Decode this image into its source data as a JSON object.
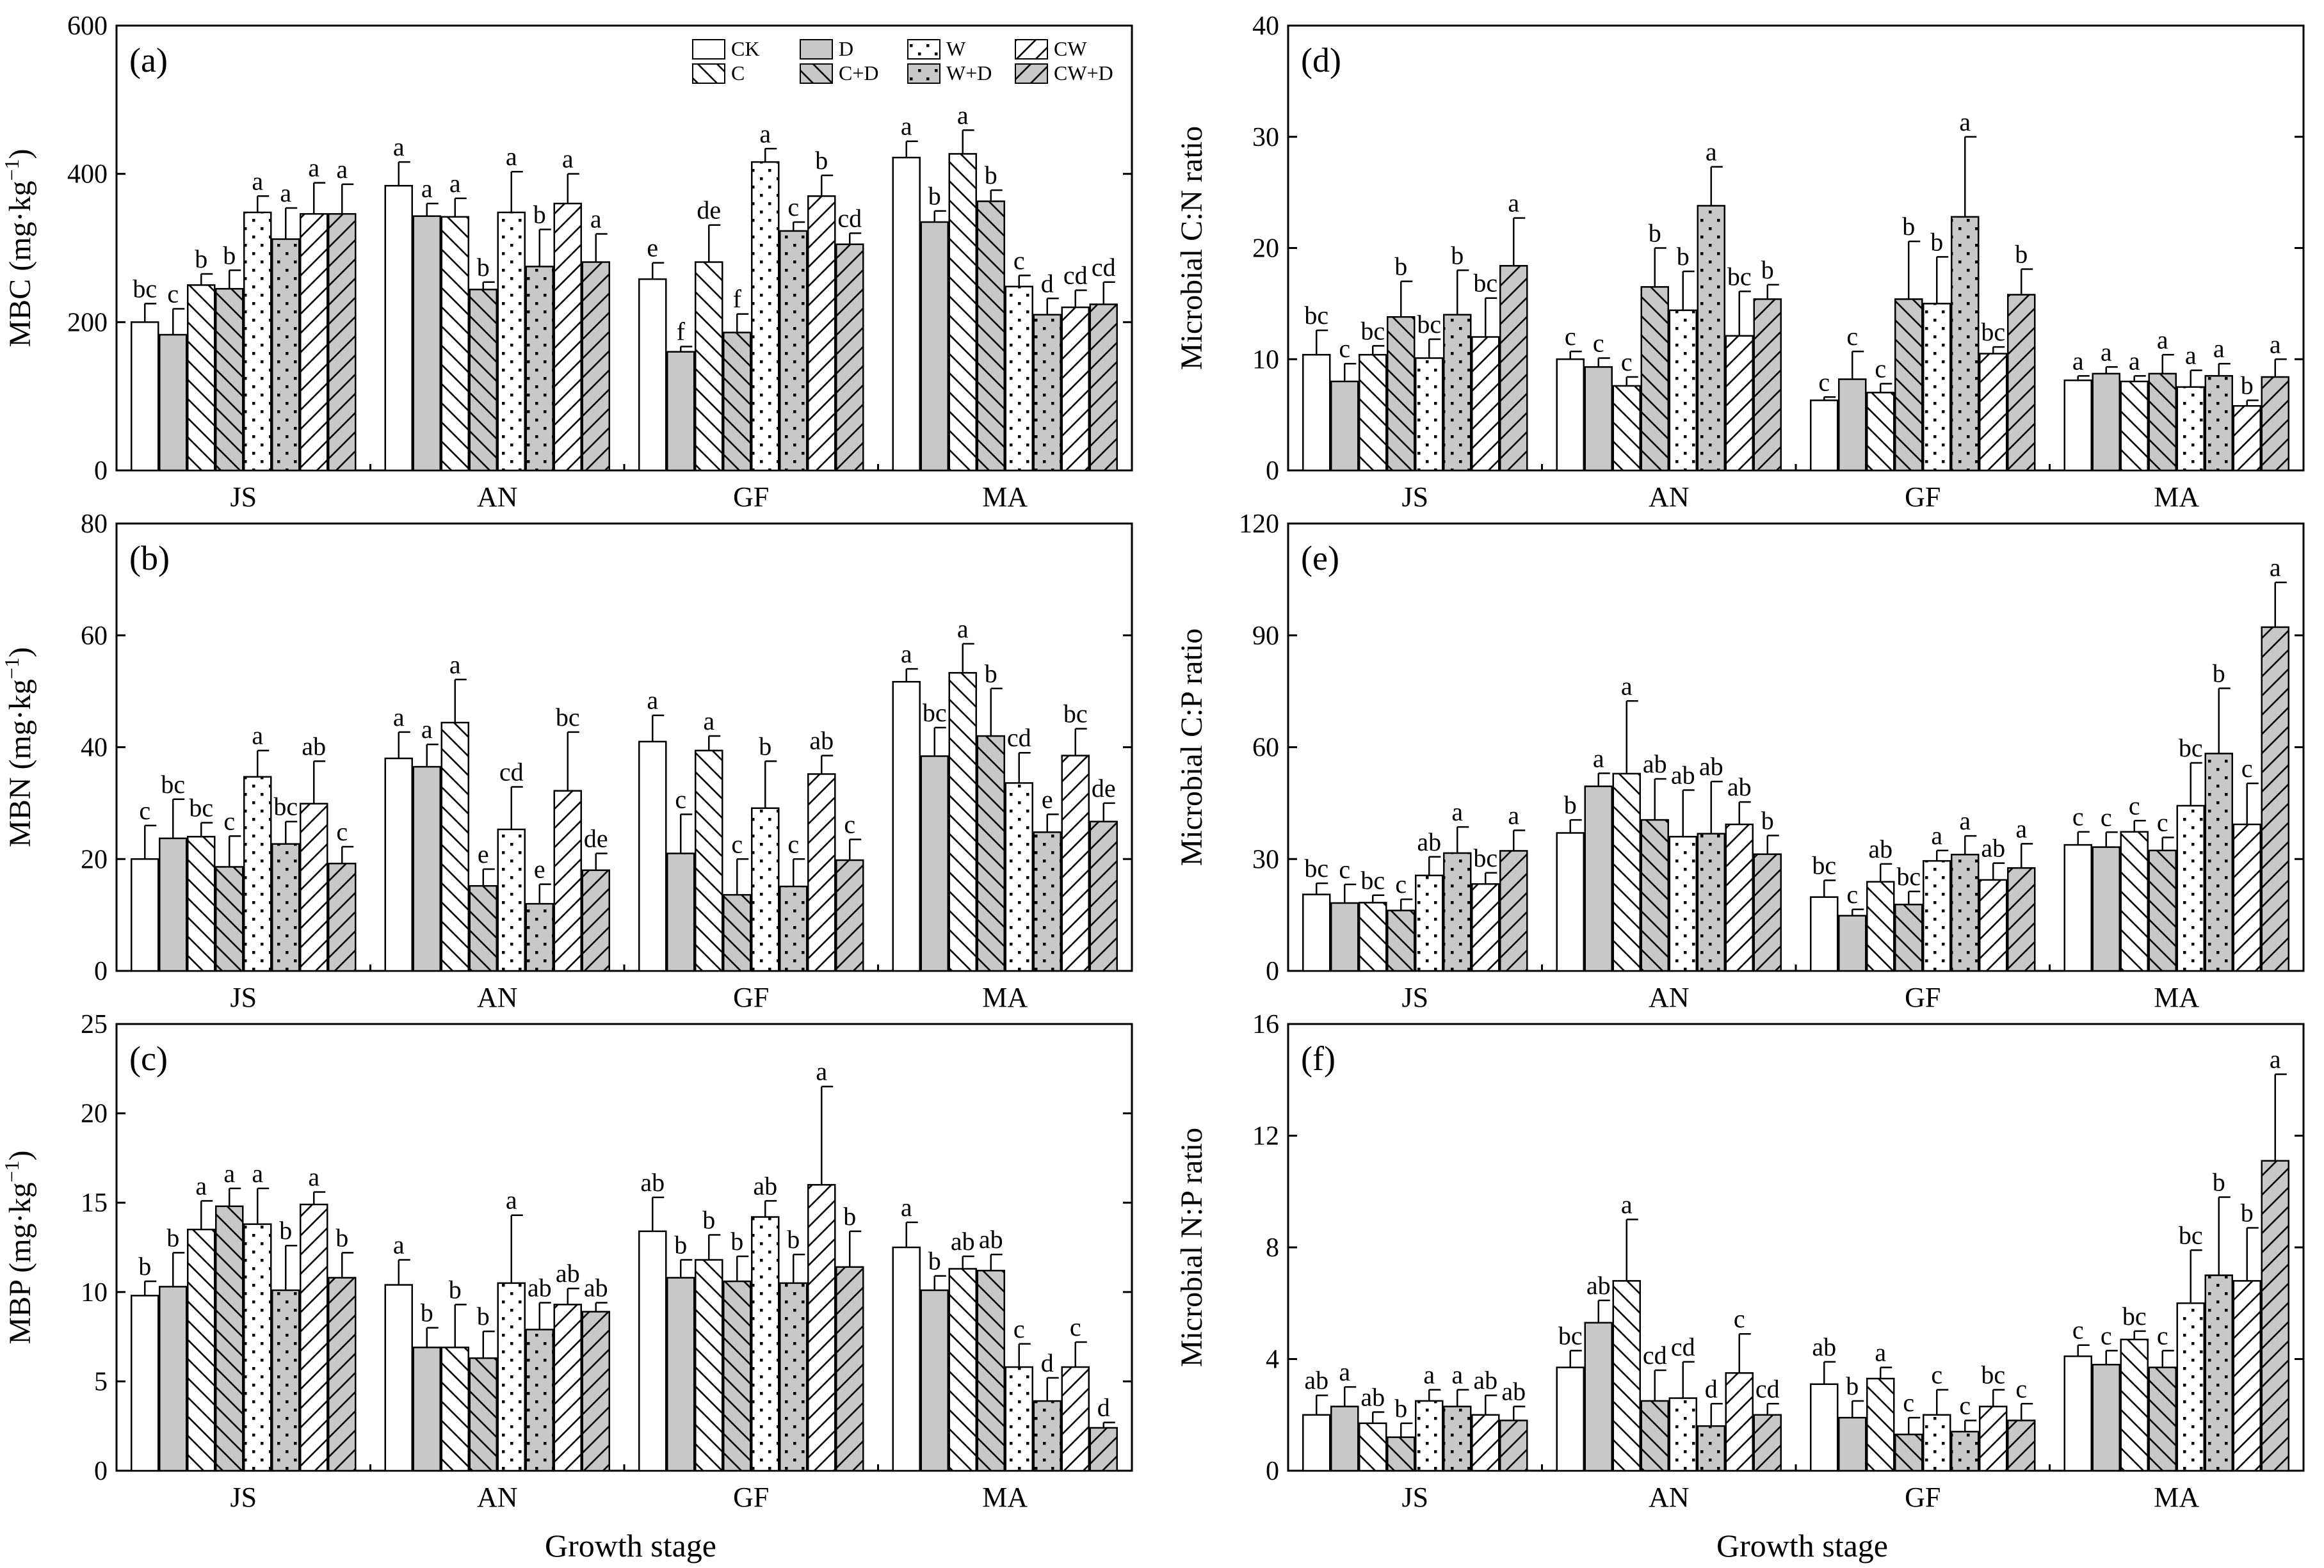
{
  "treatments": [
    "CK",
    "D",
    "W",
    "CW",
    "C",
    "C+D",
    "W+D",
    "CW+D"
  ],
  "bar_order": [
    "CK",
    "D",
    "C",
    "C+D",
    "W",
    "W+D",
    "CW",
    "CW+D"
  ],
  "styles": {
    "CK": {
      "fill": "#ffffff",
      "pattern": "none"
    },
    "D": {
      "fill": "#c8c8c8",
      "pattern": "none"
    },
    "C": {
      "fill": "#ffffff",
      "pattern": "backslash"
    },
    "C+D": {
      "fill": "#c8c8c8",
      "pattern": "backslash"
    },
    "W": {
      "fill": "#ffffff",
      "pattern": "dots"
    },
    "W+D": {
      "fill": "#c8c8c8",
      "pattern": "dots"
    },
    "CW": {
      "fill": "#ffffff",
      "pattern": "slash"
    },
    "CW+D": {
      "fill": "#c8c8c8",
      "pattern": "slash"
    }
  },
  "stages": [
    "JS",
    "AN",
    "GF",
    "MA"
  ],
  "xlabel": "Growth stage",
  "chart_data": [
    {
      "type": "bar",
      "label": "(a)",
      "ylabel": "MBC (mg·kg",
      "ylabel_sup": "−1",
      "ylabel_close": ")",
      "ylim": [
        0,
        600
      ],
      "yticks": [
        0,
        200,
        400,
        600
      ],
      "legend": true,
      "categories": [
        "JS",
        "AN",
        "GF",
        "MA"
      ],
      "values": [
        [
          200,
          183,
          250,
          245,
          348,
          312,
          346,
          346
        ],
        [
          384,
          343,
          342,
          244,
          348,
          275,
          360,
          281
        ],
        [
          258,
          160,
          281,
          186,
          416,
          323,
          370,
          305
        ],
        [
          422,
          335,
          427,
          363,
          248,
          210,
          220,
          224
        ]
      ],
      "errors": [
        [
          25,
          35,
          15,
          25,
          22,
          42,
          42,
          40
        ],
        [
          32,
          17,
          25,
          10,
          55,
          50,
          40,
          38
        ],
        [
          22,
          7,
          50,
          25,
          18,
          12,
          28,
          15
        ],
        [
          22,
          15,
          32,
          15,
          15,
          22,
          23,
          30
        ]
      ],
      "letters": [
        [
          "bc",
          "c",
          "b",
          "b",
          "a",
          "a",
          "a",
          "a"
        ],
        [
          "a",
          "a",
          "a",
          "b",
          "a",
          "b",
          "a",
          "a"
        ],
        [
          "e",
          "f",
          "de",
          "f",
          "a",
          "c",
          "b",
          "cd"
        ],
        [
          "a",
          "b",
          "a",
          "b",
          "c",
          "d",
          "cd",
          "cd"
        ]
      ]
    },
    {
      "type": "bar",
      "label": "(b)",
      "ylabel": "MBN (mg·kg",
      "ylabel_sup": "−1",
      "ylabel_close": ")",
      "ylim": [
        0,
        80
      ],
      "yticks": [
        0,
        20,
        40,
        60,
        80
      ],
      "legend": false,
      "categories": [
        "JS",
        "AN",
        "GF",
        "MA"
      ],
      "values": [
        [
          20,
          23.7,
          24,
          18.6,
          34.7,
          22.7,
          29.9,
          19.2
        ],
        [
          38,
          36.5,
          44.4,
          15.2,
          25.3,
          12,
          32.2,
          18
        ],
        [
          41,
          21,
          39.4,
          13.6,
          29.1,
          15.1,
          35.2,
          19.8
        ],
        [
          51.7,
          38.4,
          53.3,
          42,
          33.6,
          24.8,
          38.5,
          26.7
        ]
      ],
      "errors": [
        [
          6,
          7,
          2.5,
          5.5,
          4.7,
          4,
          7.6,
          3
        ],
        [
          4.7,
          4,
          7.7,
          3,
          7.6,
          3.5,
          10.5,
          3
        ],
        [
          4.7,
          7,
          2.6,
          6.4,
          8.4,
          4.9,
          3.3,
          3.7
        ],
        [
          2.3,
          5.1,
          5.2,
          8.5,
          5.4,
          3.2,
          4.8,
          3.3
        ]
      ],
      "letters": [
        [
          "c",
          "bc",
          "bc",
          "c",
          "a",
          "bc",
          "ab",
          "c"
        ],
        [
          "a",
          "a",
          "a",
          "e",
          "cd",
          "e",
          "bc",
          "de"
        ],
        [
          "a",
          "c",
          "a",
          "c",
          "b",
          "c",
          "ab",
          "c"
        ],
        [
          "a",
          "bc",
          "a",
          "b",
          "cd",
          "e",
          "bc",
          "de"
        ]
      ]
    },
    {
      "type": "bar",
      "label": "(c)",
      "ylabel": "MBP (mg·kg",
      "ylabel_sup": "−1",
      "ylabel_close": ")",
      "ylim": [
        0,
        25
      ],
      "yticks": [
        0,
        5,
        10,
        15,
        20,
        25
      ],
      "legend": false,
      "categories": [
        "JS",
        "AN",
        "GF",
        "MA"
      ],
      "values": [
        [
          9.8,
          10.3,
          13.5,
          14.8,
          13.8,
          10.1,
          14.9,
          10.8
        ],
        [
          10.4,
          6.9,
          6.9,
          6.3,
          10.5,
          7.9,
          9.3,
          8.9
        ],
        [
          13.4,
          10.8,
          11.8,
          10.6,
          14.2,
          10.5,
          16,
          11.4
        ],
        [
          12.5,
          10.1,
          11.3,
          11.2,
          5.8,
          3.9,
          5.8,
          2.4
        ]
      ],
      "errors": [
        [
          0.8,
          1.9,
          1.6,
          1,
          2,
          2.5,
          0.7,
          1.4
        ],
        [
          1.4,
          1.1,
          2.4,
          1.5,
          3.8,
          1.5,
          0.9,
          0.5
        ],
        [
          1.9,
          1,
          1.4,
          1.4,
          0.9,
          1.6,
          5.5,
          2
        ],
        [
          1.4,
          0.8,
          0.7,
          0.9,
          1.3,
          1.3,
          1.4,
          0.3
        ]
      ],
      "letters": [
        [
          "b",
          "b",
          "a",
          "a",
          "a",
          "b",
          "a",
          "b"
        ],
        [
          "a",
          "b",
          "b",
          "b",
          "a",
          "ab",
          "ab",
          "ab"
        ],
        [
          "ab",
          "b",
          "b",
          "b",
          "ab",
          "b",
          "a",
          "b"
        ],
        [
          "a",
          "b",
          "ab",
          "ab",
          "c",
          "d",
          "c",
          "d"
        ]
      ]
    },
    {
      "type": "bar",
      "label": "(d)",
      "ylabel": "Microbial C:N ratio",
      "ylim": [
        0,
        40
      ],
      "yticks": [
        0,
        10,
        20,
        30,
        40
      ],
      "legend": false,
      "categories": [
        "JS",
        "AN",
        "GF",
        "MA"
      ],
      "values": [
        [
          10.4,
          8,
          10.4,
          13.8,
          10.1,
          14,
          12,
          18.4
        ],
        [
          10,
          9.3,
          7.6,
          16.5,
          14.4,
          23.8,
          12.1,
          15.4
        ],
        [
          6.3,
          8.2,
          7,
          15.4,
          15,
          22.8,
          10.5,
          15.8
        ],
        [
          8.1,
          8.7,
          8,
          8.7,
          7.5,
          8.5,
          5.8,
          8.4
        ]
      ],
      "errors": [
        [
          2.2,
          1.6,
          0.8,
          3.2,
          1.7,
          4,
          3.5,
          4.3
        ],
        [
          0.7,
          0.8,
          0.8,
          3.5,
          3.5,
          3.5,
          4,
          1.3
        ],
        [
          0.3,
          2.5,
          0.8,
          5.2,
          4.2,
          7.2,
          0.6,
          2.3
        ],
        [
          0.4,
          0.6,
          0.5,
          1.7,
          1.5,
          1.1,
          0.5,
          1.6
        ]
      ],
      "letters": [
        [
          "bc",
          "c",
          "bc",
          "b",
          "bc",
          "b",
          "bc",
          "a"
        ],
        [
          "c",
          "c",
          "c",
          "b",
          "b",
          "a",
          "bc",
          "b"
        ],
        [
          "c",
          "c",
          "c",
          "b",
          "b",
          "a",
          "bc",
          "b"
        ],
        [
          "a",
          "a",
          "a",
          "a",
          "a",
          "a",
          "b",
          "a"
        ]
      ]
    },
    {
      "type": "bar",
      "label": "(e)",
      "ylabel": "Microbial C:P ratio",
      "ylim": [
        0,
        120
      ],
      "yticks": [
        0,
        30,
        60,
        90,
        120
      ],
      "legend": false,
      "categories": [
        "JS",
        "AN",
        "GF",
        "MA"
      ],
      "values": [
        [
          20.5,
          18.2,
          18.3,
          16.2,
          25.6,
          31.6,
          23.3,
          32.2
        ],
        [
          37,
          49.5,
          52.9,
          40.5,
          36,
          36.8,
          39.3,
          31.3
        ],
        [
          19.8,
          14.8,
          23.9,
          17.8,
          29.5,
          31.2,
          24.4,
          27.6
        ],
        [
          33.8,
          33.2,
          37.3,
          32.3,
          44.3,
          58.3,
          39.3,
          92.2
        ]
      ],
      "errors": [
        [
          3,
          5,
          2,
          3,
          5,
          7,
          3,
          5.5
        ],
        [
          3.5,
          3.5,
          19.5,
          11,
          12.5,
          14,
          6,
          5
        ],
        [
          4.5,
          1.7,
          4.8,
          3.5,
          2.8,
          5,
          4.5,
          6.5
        ],
        [
          3.5,
          4,
          3,
          3.5,
          11.5,
          17.5,
          11,
          12
        ]
      ],
      "letters": [
        [
          "bc",
          "c",
          "bc",
          "c",
          "ab",
          "a",
          "bc",
          "a"
        ],
        [
          "b",
          "a",
          "a",
          "ab",
          "ab",
          "ab",
          "ab",
          "b"
        ],
        [
          "bc",
          "c",
          "ab",
          "bc",
          "a",
          "a",
          "ab",
          "a"
        ],
        [
          "c",
          "c",
          "c",
          "c",
          "bc",
          "b",
          "c",
          "a"
        ]
      ]
    },
    {
      "type": "bar",
      "label": "(f)",
      "ylabel": "Microbial N:P ratio",
      "ylim": [
        0,
        16
      ],
      "yticks": [
        0,
        4,
        8,
        12,
        16
      ],
      "legend": false,
      "categories": [
        "JS",
        "AN",
        "GF",
        "MA"
      ],
      "values": [
        [
          2,
          2.3,
          1.7,
          1.2,
          2.5,
          2.3,
          2,
          1.8
        ],
        [
          3.7,
          5.3,
          6.8,
          2.5,
          2.6,
          1.6,
          3.5,
          2
        ],
        [
          3.1,
          1.9,
          3.3,
          1.3,
          2,
          1.4,
          2.3,
          1.8
        ],
        [
          4.1,
          3.8,
          4.7,
          3.7,
          6,
          7,
          6.8,
          11.1
        ]
      ],
      "errors": [
        [
          0.7,
          0.7,
          0.4,
          0.5,
          0.4,
          0.6,
          0.7,
          0.5
        ],
        [
          0.6,
          0.8,
          2.2,
          1.1,
          1.3,
          0.8,
          1.4,
          0.4
        ],
        [
          0.8,
          0.6,
          0.4,
          0.6,
          0.9,
          0.4,
          0.6,
          0.6
        ],
        [
          0.4,
          0.5,
          0.3,
          0.6,
          1.9,
          2.8,
          1.9,
          3.1
        ]
      ],
      "letters": [
        [
          "ab",
          "a",
          "ab",
          "b",
          "a",
          "a",
          "ab",
          "ab"
        ],
        [
          "bc",
          "ab",
          "a",
          "cd",
          "cd",
          "d",
          "c",
          "cd"
        ],
        [
          "ab",
          "b",
          "a",
          "c",
          "c",
          "c",
          "bc",
          "c"
        ],
        [
          "c",
          "c",
          "bc",
          "c",
          "bc",
          "b",
          "b",
          "a"
        ]
      ]
    }
  ]
}
